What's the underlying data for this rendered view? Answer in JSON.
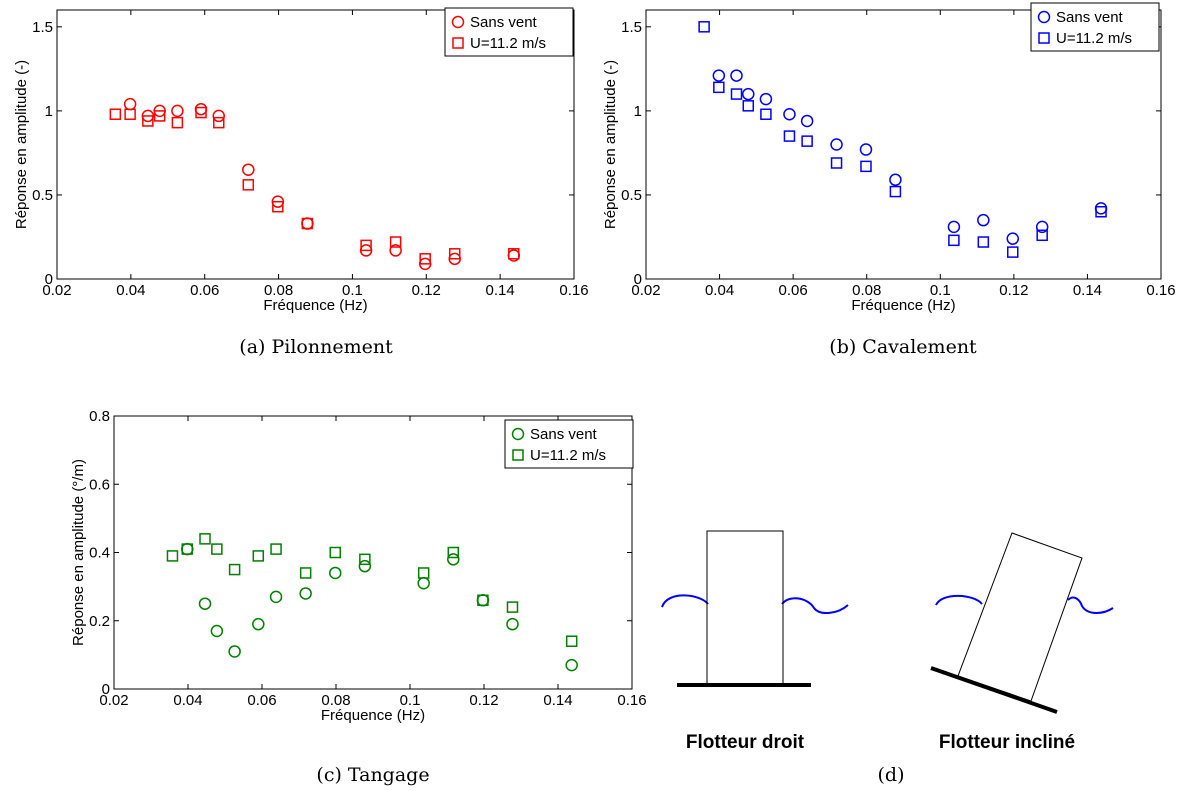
{
  "chart_data": [
    {
      "type": "scatter",
      "caption": "(a) Pilonnement",
      "xlabel": "Fréquence (Hz)",
      "ylabel": "Réponse en amplitude (-)",
      "xlim": [
        0.02,
        0.16
      ],
      "ylim": [
        0,
        1.6
      ],
      "xticks": [
        0.02,
        0.04,
        0.06,
        0.08,
        0.1,
        0.12,
        0.14,
        0.16
      ],
      "xtick_labels": [
        "0.02",
        "0.04",
        "0.06",
        "0.08",
        "0.1",
        "0.12",
        "0.14",
        "0.16"
      ],
      "yticks": [
        0,
        0.5,
        1,
        1.5
      ],
      "ytick_labels": [
        "0",
        "0.5",
        "1",
        "1.5"
      ],
      "color": "#ff0000",
      "legend_position": "top-right",
      "series": [
        {
          "name": "Sans vent",
          "marker": "circle",
          "x": [
            0.0398,
            0.0446,
            0.0478,
            0.0526,
            0.059,
            0.0638,
            0.0718,
            0.0798,
            0.0878,
            0.1037,
            0.1117,
            0.1197,
            0.1277,
            0.1437
          ],
          "y": [
            1.04,
            0.97,
            1.0,
            1.0,
            1.01,
            0.97,
            0.65,
            0.46,
            0.33,
            0.17,
            0.17,
            0.09,
            0.12,
            0.14
          ]
        },
        {
          "name": "U=11.2 m/s",
          "marker": "square",
          "x": [
            0.0358,
            0.0398,
            0.0446,
            0.0478,
            0.0526,
            0.059,
            0.0638,
            0.0718,
            0.0798,
            0.0878,
            0.1037,
            0.1117,
            0.1197,
            0.1277,
            0.1437
          ],
          "y": [
            0.98,
            0.98,
            0.94,
            0.97,
            0.93,
            0.99,
            0.93,
            0.56,
            0.43,
            0.33,
            0.2,
            0.22,
            0.12,
            0.15,
            0.15
          ]
        }
      ]
    },
    {
      "type": "scatter",
      "caption": "(b) Cavalement",
      "xlabel": "Fréquence (Hz)",
      "ylabel": "Réponse en amplitude (-)",
      "xlim": [
        0.02,
        0.16
      ],
      "ylim": [
        0,
        1.6
      ],
      "xticks": [
        0.02,
        0.04,
        0.06,
        0.08,
        0.1,
        0.12,
        0.14,
        0.16
      ],
      "xtick_labels": [
        "0.02",
        "0.04",
        "0.06",
        "0.08",
        "0.1",
        "0.12",
        "0.14",
        "0.16"
      ],
      "yticks": [
        0,
        0.5,
        1,
        1.5
      ],
      "ytick_labels": [
        "0",
        "0.5",
        "1",
        "1.5"
      ],
      "color": "#0000ff",
      "legend_position": "top-right",
      "series": [
        {
          "name": "Sans vent",
          "marker": "circle",
          "x": [
            0.0398,
            0.0446,
            0.0478,
            0.0526,
            0.059,
            0.0638,
            0.0718,
            0.0798,
            0.0878,
            0.1037,
            0.1117,
            0.1197,
            0.1277,
            0.1437
          ],
          "y": [
            1.21,
            1.21,
            1.1,
            1.07,
            0.98,
            0.94,
            0.8,
            0.77,
            0.59,
            0.31,
            0.35,
            0.24,
            0.31,
            0.42
          ]
        },
        {
          "name": "U=11.2 m/s",
          "marker": "square",
          "x": [
            0.0358,
            0.0398,
            0.0446,
            0.0478,
            0.0526,
            0.059,
            0.0638,
            0.0718,
            0.0798,
            0.0878,
            0.1037,
            0.1117,
            0.1197,
            0.1277,
            0.1437
          ],
          "y": [
            1.5,
            1.14,
            1.1,
            1.03,
            0.98,
            0.85,
            0.82,
            0.69,
            0.67,
            0.52,
            0.23,
            0.22,
            0.16,
            0.26,
            0.4
          ]
        }
      ]
    },
    {
      "type": "scatter",
      "caption": "(c) Tangage",
      "xlabel": "Fréquence (Hz)",
      "ylabel": "Réponse en amplitude (°/m)",
      "xlim": [
        0.02,
        0.16
      ],
      "ylim": [
        0,
        0.8
      ],
      "xticks": [
        0.02,
        0.04,
        0.06,
        0.08,
        0.1,
        0.12,
        0.14,
        0.16
      ],
      "xtick_labels": [
        "0.02",
        "0.04",
        "0.06",
        "0.08",
        "0.1",
        "0.12",
        "0.14",
        "0.16"
      ],
      "yticks": [
        0,
        0.2,
        0.4,
        0.6,
        0.8
      ],
      "ytick_labels": [
        "0",
        "0.2",
        "0.4",
        "0.6",
        "0.8"
      ],
      "color": "#008000",
      "legend_position": "top-right",
      "series": [
        {
          "name": "Sans vent",
          "marker": "circle",
          "x": [
            0.0398,
            0.0446,
            0.0478,
            0.0526,
            0.059,
            0.0638,
            0.0718,
            0.0798,
            0.0878,
            0.1037,
            0.1117,
            0.1197,
            0.1277,
            0.1437
          ],
          "y": [
            0.41,
            0.25,
            0.17,
            0.11,
            0.19,
            0.27,
            0.28,
            0.34,
            0.36,
            0.31,
            0.38,
            0.26,
            0.19,
            0.07
          ]
        },
        {
          "name": "U=11.2 m/s",
          "marker": "square",
          "x": [
            0.0358,
            0.0398,
            0.0446,
            0.0478,
            0.0526,
            0.059,
            0.0638,
            0.0718,
            0.0798,
            0.0878,
            0.1037,
            0.1117,
            0.1197,
            0.1277,
            0.1437
          ],
          "y": [
            0.39,
            0.41,
            0.44,
            0.41,
            0.35,
            0.39,
            0.41,
            0.34,
            0.4,
            0.38,
            0.34,
            0.4,
            0.26,
            0.24,
            0.14
          ]
        }
      ]
    }
  ],
  "diagram": {
    "caption": "(d)",
    "label_straight": "Flotteur droit",
    "label_tilted": "Flotteur incliné",
    "water_color": "#0000ff"
  }
}
